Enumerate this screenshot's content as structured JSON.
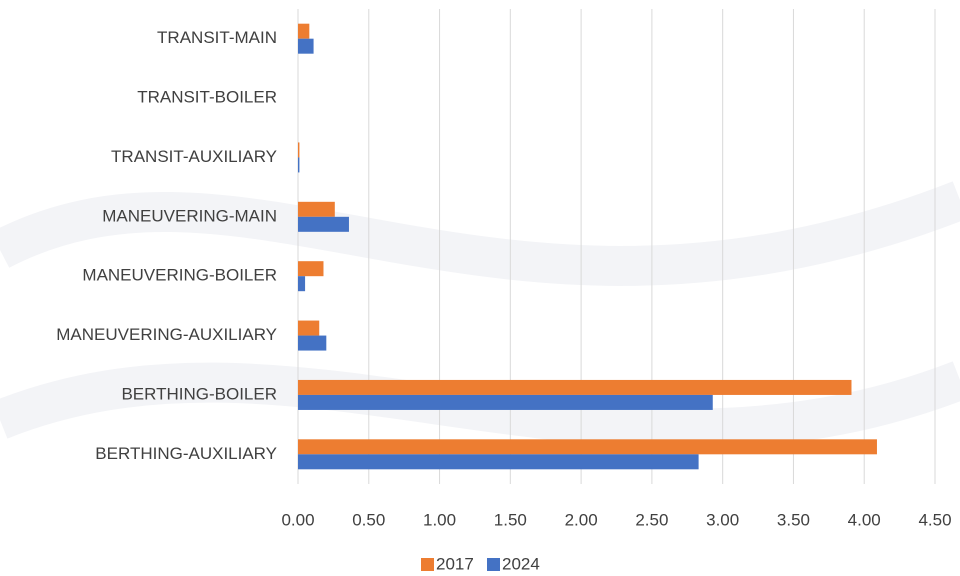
{
  "chart_data": {
    "type": "hbar",
    "categories": [
      "TRANSIT-MAIN",
      "TRANSIT-BOILER",
      "TRANSIT-AUXILIARY",
      "MANEUVERING-MAIN",
      "MANEUVERING-BOILER",
      "MANEUVERING-AUXILIARY",
      "BERTHING-BOILER",
      "BERTHING-AUXILIARY"
    ],
    "series": [
      {
        "name": "2017",
        "color": "#ed7d31",
        "values": [
          0.08,
          0,
          0.01,
          0.26,
          0.18,
          0.15,
          3.91,
          4.09
        ]
      },
      {
        "name": "2024",
        "color": "#4472c4",
        "values": [
          0.11,
          0,
          0.01,
          0.36,
          0.05,
          0.2,
          2.93,
          2.83
        ]
      }
    ],
    "xlim": [
      0,
      4.5
    ],
    "xticks": [
      {
        "value": 0,
        "label": "0.00"
      },
      {
        "value": 0.5,
        "label": "0.50"
      },
      {
        "value": 1,
        "label": "1.00"
      },
      {
        "value": 1.5,
        "label": "1.50"
      },
      {
        "value": 2,
        "label": "2.00"
      },
      {
        "value": 2.5,
        "label": "2.50"
      },
      {
        "value": 3,
        "label": "3.00"
      },
      {
        "value": 3.5,
        "label": "3.50"
      },
      {
        "value": 4,
        "label": "4.00"
      },
      {
        "value": 4.5,
        "label": "4.50"
      }
    ],
    "grid": true,
    "legend": "bottom"
  }
}
